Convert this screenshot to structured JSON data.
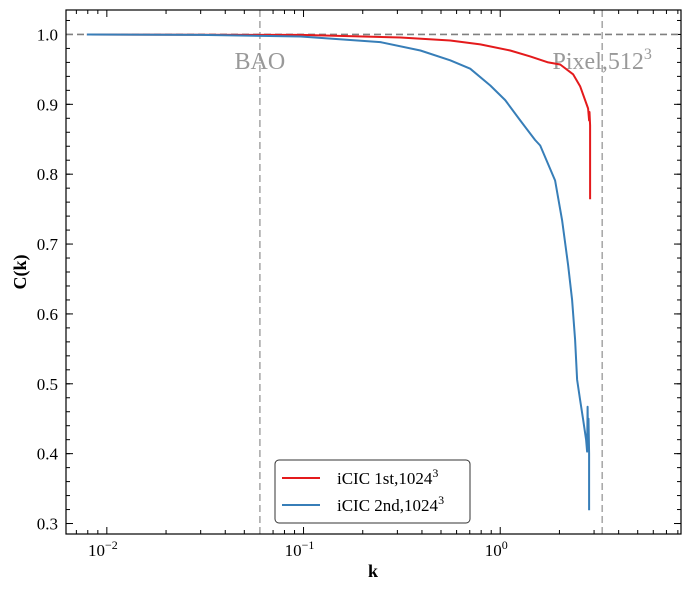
{
  "chart_data": {
    "type": "line",
    "title": "",
    "xlabel": "k",
    "ylabel": "C(k)",
    "xscale": "log",
    "xlim": [
      0.0062,
      8.3
    ],
    "ylim": [
      0.285,
      1.035
    ],
    "grid": false,
    "legend_position": "bottom-center",
    "x_ticks": [
      0.01,
      0.1,
      1
    ],
    "x_tick_labels": [
      {
        "base": "10",
        "exp": "−2"
      },
      {
        "base": "10",
        "exp": "−1"
      },
      {
        "base": "10",
        "exp": "0"
      }
    ],
    "y_ticks": [
      0.3,
      0.4,
      0.5,
      0.6,
      0.7,
      0.8,
      0.9,
      1.0
    ],
    "y_tick_labels": [
      "0.3",
      "0.4",
      "0.5",
      "0.6",
      "0.7",
      "0.8",
      "0.9",
      "1.0"
    ],
    "reference_lines": [
      {
        "orientation": "horizontal",
        "value": 1.0,
        "color": "#808080",
        "label": ""
      },
      {
        "orientation": "vertical",
        "value": 0.06,
        "color": "#aaaaaa",
        "label": "BAO",
        "label_sup": ""
      },
      {
        "orientation": "vertical",
        "value": 3.3,
        "color": "#aaaaaa",
        "label": "Pixel,512",
        "label_sup": "3"
      }
    ],
    "series": [
      {
        "name": "iCIC 1st,1024",
        "name_sup": "3",
        "color": "#e41a1c",
        "x": [
          0.00792,
          0.0966,
          0.311,
          0.557,
          0.792,
          1.124,
          1.42,
          1.753,
          2.017,
          2.347,
          2.548,
          2.702,
          2.797,
          2.83,
          2.845,
          2.863,
          2.863
        ],
        "y": [
          1.0,
          0.9993,
          0.9957,
          0.9914,
          0.9857,
          0.977,
          0.9686,
          0.96,
          0.957,
          0.943,
          0.926,
          0.906,
          0.894,
          0.877,
          0.889,
          0.87,
          0.764
        ]
      },
      {
        "name": "iCIC 2nd,1024",
        "name_sup": "3",
        "color": "#377eb8",
        "x": [
          0.00792,
          0.03,
          0.0966,
          0.246,
          0.393,
          0.557,
          0.704,
          0.89,
          1.06,
          1.263,
          1.505,
          1.596,
          1.902,
          2.064,
          2.214,
          2.321,
          2.403,
          2.459,
          2.548,
          2.64,
          2.733,
          2.766,
          2.78,
          2.797,
          2.81,
          2.83,
          2.83
        ],
        "y": [
          1.0,
          0.9993,
          0.997,
          0.989,
          0.977,
          0.963,
          0.951,
          0.927,
          0.906,
          0.877,
          0.849,
          0.841,
          0.791,
          0.734,
          0.67,
          0.62,
          0.563,
          0.506,
          0.477,
          0.449,
          0.42,
          0.403,
          0.467,
          0.41,
          0.45,
          0.4,
          0.319
        ]
      }
    ]
  }
}
